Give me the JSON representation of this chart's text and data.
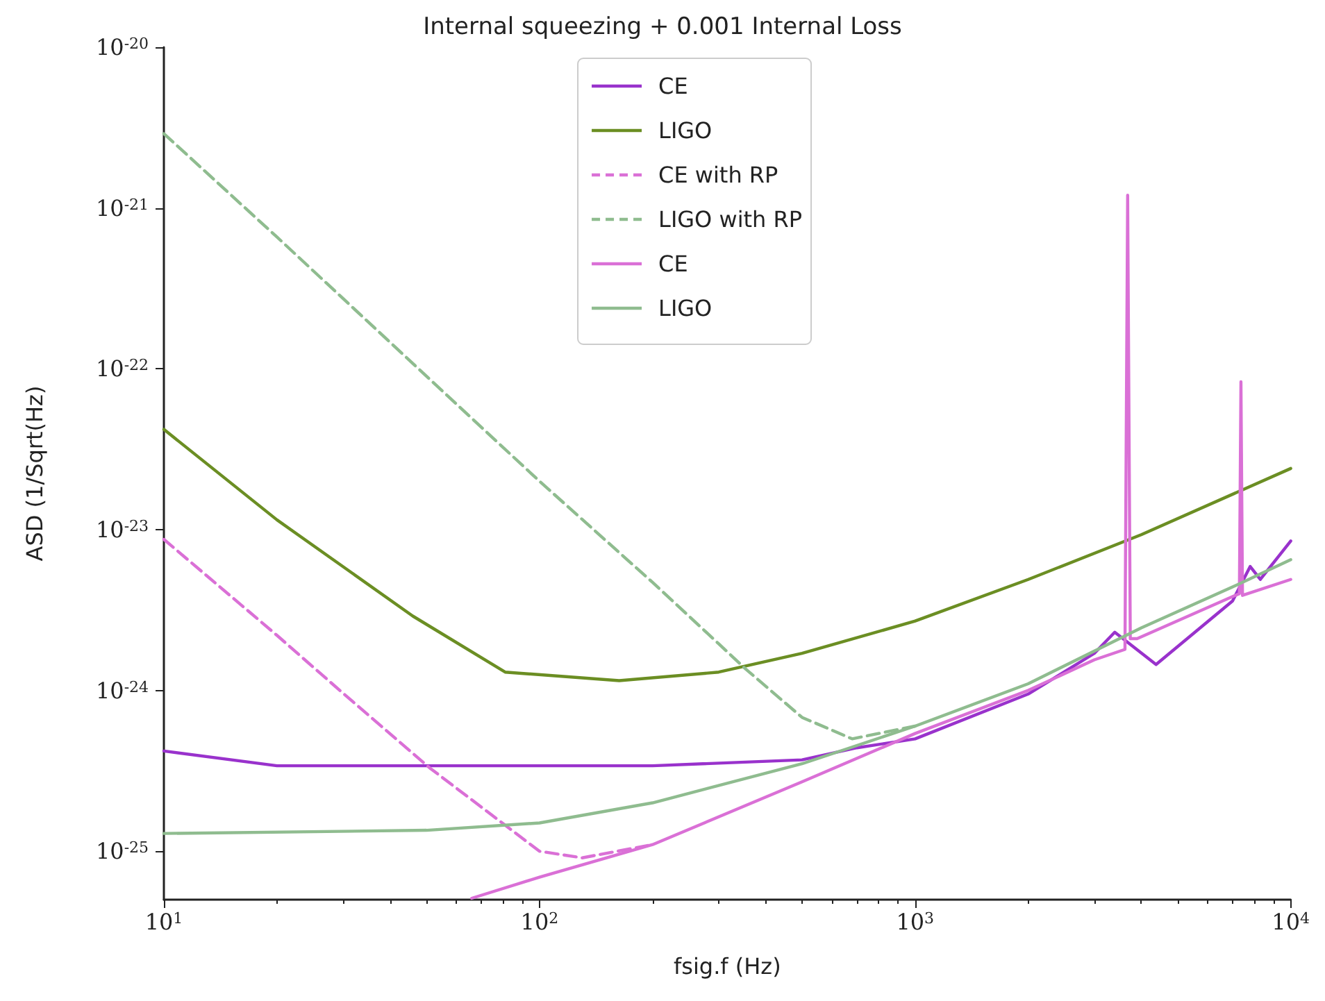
{
  "chart_data": {
    "type": "line",
    "title": "Internal squeezing + 0.001 Internal Loss",
    "xlabel": "fsig.f (Hz)",
    "ylabel": "ASD (1/Sqrt(Hz)",
    "log": "xy",
    "grid": false,
    "legend": "top",
    "marker": "none",
    "xlim": [
      10,
      10000
    ],
    "xticks": [
      {
        "value": 10,
        "label": "10$^{1}$"
      },
      {
        "value": 100,
        "label": "10$^{2}$"
      },
      {
        "value": 1000,
        "label": "10$^{3}$"
      },
      {
        "value": 10000,
        "label": "10$^{4}$"
      }
    ],
    "ylim": [
      5e-26,
      1e-20
    ],
    "yticks": [
      {
        "value": 1e-25,
        "label": "10$^{-25}$"
      },
      {
        "value": 1e-24,
        "label": "10$^{-24}$"
      },
      {
        "value": 1e-23,
        "label": "10$^{-23}$"
      },
      {
        "value": 1e-22,
        "label": "10$^{-22}$"
      },
      {
        "value": 1e-21,
        "label": "10$^{-21}$"
      },
      {
        "value": 1e-20,
        "label": "10$^{-20}$"
      }
    ],
    "series": [
      {
        "name": "CE",
        "color": "#9932cc",
        "line_style": "solid",
        "x": [
          10,
          20,
          50,
          200,
          500,
          700,
          1000,
          2000,
          3000,
          3400,
          4380,
          7000,
          7800,
          8300,
          10000
        ],
        "values": [
          4.2e-25,
          3.4e-25,
          3.4e-25,
          3.4e-25,
          3.7e-25,
          4.4e-25,
          5e-25,
          9.5e-25,
          1.7e-24,
          2.3e-24,
          1.45e-24,
          3.6e-24,
          5.9e-24,
          4.9e-24,
          8.5e-24
        ]
      },
      {
        "name": "LIGO",
        "color": "#6b8e23",
        "line_style": "solid",
        "x": [
          10,
          20,
          46,
          81,
          163,
          300,
          500,
          1000,
          2000,
          4000,
          10000
        ],
        "values": [
          4.2e-23,
          1.15e-23,
          2.9e-24,
          1.3e-24,
          1.15e-24,
          1.3e-24,
          1.7e-24,
          2.7e-24,
          4.9e-24,
          9.3e-24,
          2.4e-23
        ]
      },
      {
        "name": "CE with RP",
        "color": "#da70d6",
        "line_style": "dashed",
        "x": [
          10,
          20,
          30,
          51,
          100,
          130,
          200
        ],
        "values": [
          8.7e-24,
          2.2e-24,
          9.6e-25,
          3.3e-25,
          1e-25,
          9.1e-26,
          1.1e-25
        ]
      },
      {
        "name": "LIGO with RP",
        "color": "#8fbc8f",
        "line_style": "dashed",
        "x": [
          10,
          20,
          50,
          100,
          200,
          300,
          355,
          500,
          680,
          1000
        ],
        "values": [
          2.9e-21,
          6.6e-22,
          9e-23,
          2e-23,
          4.7e-24,
          1.95e-24,
          1.35e-24,
          6.8e-25,
          5e-25,
          6e-25
        ]
      },
      {
        "name": "CE",
        "color": "#da70d6",
        "line_style": "solid",
        "x": [
          66,
          100,
          200,
          500,
          1000,
          2000,
          3000,
          3620,
          3680,
          3740,
          3900,
          7300,
          7370,
          7440,
          10000
        ],
        "values": [
          5.1e-26,
          6.9e-26,
          1.1e-25,
          2.7e-25,
          5.4e-25,
          1e-24,
          1.55e-24,
          1.8e-24,
          1.2e-21,
          2.1e-24,
          2.1e-24,
          4e-24,
          8.3e-23,
          3.9e-24,
          4.9e-24
        ]
      },
      {
        "name": "LIGO",
        "color": "#8fbc8f",
        "line_style": "solid",
        "x": [
          10,
          50,
          100,
          200,
          500,
          1000,
          2000,
          4000,
          7000,
          10000
        ],
        "values": [
          1.29e-25,
          1.35e-25,
          1.5e-25,
          2e-25,
          3.5e-25,
          6e-25,
          1.1e-24,
          2.45e-24,
          4.4e-24,
          6.5e-24
        ]
      }
    ]
  }
}
